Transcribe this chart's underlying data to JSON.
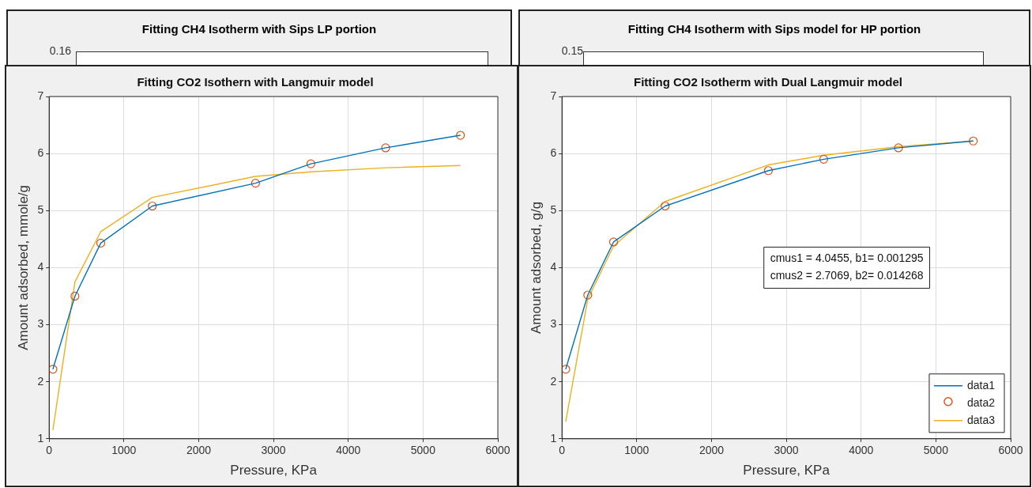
{
  "chart_data": [
    {
      "type": "other",
      "title": "Fitting CH4 Isotherm with Sips LP portion",
      "annotations": [
        "0.16"
      ]
    },
    {
      "type": "other",
      "title": "Fitting CH4 Isotherm with Sips model for HP portion",
      "annotations": [
        "0.15"
      ]
    },
    {
      "type": "line",
      "title": "Fitting CO2 Isothern with Langmuir model",
      "xlabel": "Pressure, KPa",
      "ylabel": "Amount adsorbed, mmole/g",
      "x": [
        50,
        345,
        690,
        1380,
        2760,
        3500,
        4500,
        5500
      ],
      "xlim": [
        0,
        6000
      ],
      "xticks": [
        0,
        1000,
        2000,
        3000,
        4000,
        5000,
        6000
      ],
      "ylim": [
        1,
        7
      ],
      "yticks": [
        1,
        2,
        3,
        4,
        5,
        6,
        7
      ],
      "grid": true,
      "legend": false,
      "series": [
        {
          "type": "line",
          "color": "#0072bd",
          "marker": "none",
          "values": [
            2.22,
            3.5,
            4.43,
            5.08,
            5.48,
            5.82,
            6.1,
            6.32
          ]
        },
        {
          "type": "scatter",
          "color": "#d95319",
          "marker": "circle",
          "values": [
            2.22,
            3.5,
            4.43,
            5.08,
            5.48,
            5.82,
            6.1,
            6.32
          ]
        },
        {
          "type": "line",
          "color": "#edb120",
          "marker": "none",
          "values": [
            1.15,
            3.75,
            4.63,
            5.23,
            5.6,
            5.68,
            5.75,
            5.79
          ]
        }
      ]
    },
    {
      "type": "line",
      "title": "Fitting CO2 Isotherm with Dual Langmuir model",
      "xlabel": "Pressure, KPa",
      "ylabel": "Amount adsorbed, g/g",
      "x": [
        50,
        345,
        690,
        1380,
        2760,
        3500,
        4500,
        5500
      ],
      "xlim": [
        0,
        6000
      ],
      "xticks": [
        0,
        1000,
        2000,
        3000,
        4000,
        5000,
        6000
      ],
      "ylim": [
        1,
        7
      ],
      "yticks": [
        1,
        2,
        3,
        4,
        5,
        6,
        7
      ],
      "grid": true,
      "legend": "bottom right",
      "annotations": [
        "cmus1 = 4.0455, b1= 0.001295\ncmus2 = 2.7069, b2= 0.014268"
      ],
      "series": [
        {
          "type": "line",
          "name": "data1",
          "color": "#0072bd",
          "marker": "none",
          "values": [
            2.22,
            3.52,
            4.45,
            5.08,
            5.7,
            5.9,
            6.1,
            6.22
          ]
        },
        {
          "type": "scatter",
          "name": "data2",
          "color": "#d95319",
          "marker": "circle",
          "values": [
            2.22,
            3.52,
            4.45,
            5.08,
            5.7,
            5.9,
            6.1,
            6.22
          ]
        },
        {
          "type": "line",
          "name": "data3",
          "color": "#edb120",
          "marker": "none",
          "values": [
            1.3,
            3.45,
            4.38,
            5.16,
            5.8,
            5.97,
            6.12,
            6.22
          ]
        }
      ]
    }
  ]
}
